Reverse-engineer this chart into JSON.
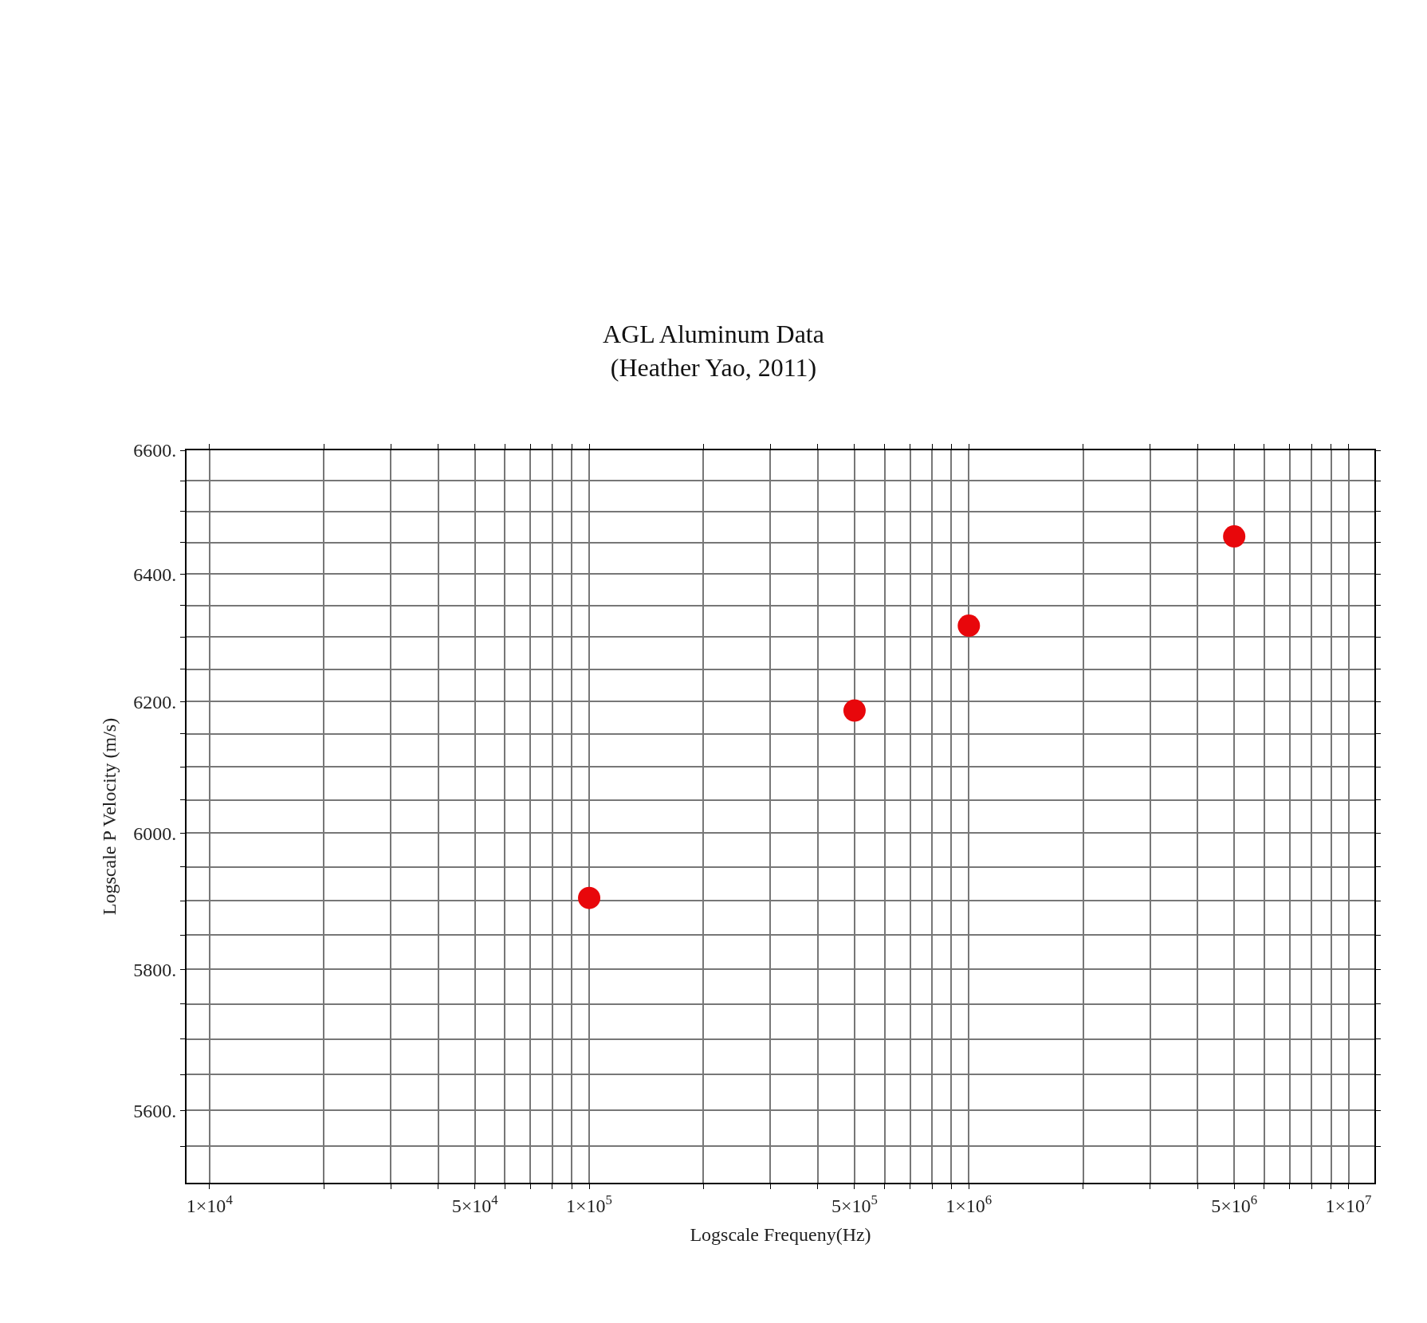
{
  "chart_data": {
    "type": "scatter",
    "title": "AGL Aluminum Data\n(Heather Yao, 2011)",
    "xlabel": "Logscale Frequeny(Hz)",
    "ylabel": "Logscale P Velocity (m/s)",
    "x": [
      100000,
      500000,
      1000000,
      5000000
    ],
    "series": [
      {
        "color": "#e8070b",
        "values": [
          5904,
          6186,
          6318,
          6460
        ]
      }
    ],
    "log": "xy",
    "marker": "circle",
    "grid": true,
    "xlim": [
      8700,
      11700000
    ],
    "ylim": [
      5500,
      6600
    ],
    "xticks": [
      {
        "value": 10000,
        "label": "1×10$^{4}$"
      },
      {
        "value": 20000,
        "label": null
      },
      {
        "value": 30000,
        "label": null
      },
      {
        "value": 40000,
        "label": null
      },
      {
        "value": 50000,
        "label": "5×10$^{4}$"
      },
      {
        "value": 60000,
        "label": null
      },
      {
        "value": 70000,
        "label": null
      },
      {
        "value": 80000,
        "label": null
      },
      {
        "value": 90000,
        "label": null
      },
      {
        "value": 100000,
        "label": "1×10$^{5}$"
      },
      {
        "value": 200000,
        "label": null
      },
      {
        "value": 300000,
        "label": null
      },
      {
        "value": 400000,
        "label": null
      },
      {
        "value": 500000,
        "label": "5×10$^{5}$"
      },
      {
        "value": 600000,
        "label": null
      },
      {
        "value": 700000,
        "label": null
      },
      {
        "value": 800000,
        "label": null
      },
      {
        "value": 900000,
        "label": null
      },
      {
        "value": 1000000,
        "label": "1×10$^{6}$"
      },
      {
        "value": 2000000,
        "label": null
      },
      {
        "value": 3000000,
        "label": null
      },
      {
        "value": 4000000,
        "label": null
      },
      {
        "value": 5000000,
        "label": "5×10$^{6}$"
      },
      {
        "value": 6000000,
        "label": null
      },
      {
        "value": 7000000,
        "label": null
      },
      {
        "value": 8000000,
        "label": null
      },
      {
        "value": 9000000,
        "label": null
      },
      {
        "value": 10000000,
        "label": "1×10$^{7}$"
      }
    ],
    "yticks": [
      {
        "value": 5550,
        "label": null
      },
      {
        "value": 5600,
        "label": "5600."
      },
      {
        "value": 5650,
        "label": null
      },
      {
        "value": 5700,
        "label": null
      },
      {
        "value": 5750,
        "label": null
      },
      {
        "value": 5800,
        "label": "5800."
      },
      {
        "value": 5850,
        "label": null
      },
      {
        "value": 5900,
        "label": null
      },
      {
        "value": 5950,
        "label": null
      },
      {
        "value": 6000,
        "label": "6000."
      },
      {
        "value": 6050,
        "label": null
      },
      {
        "value": 6100,
        "label": null
      },
      {
        "value": 6150,
        "label": null
      },
      {
        "value": 6200,
        "label": "6200."
      },
      {
        "value": 6250,
        "label": null
      },
      {
        "value": 6300,
        "label": null
      },
      {
        "value": 6350,
        "label": null
      },
      {
        "value": 6400,
        "label": "6400."
      },
      {
        "value": 6450,
        "label": null
      },
      {
        "value": 6500,
        "label": null
      },
      {
        "value": 6550,
        "label": null
      },
      {
        "value": 6600,
        "label": "6600."
      }
    ]
  }
}
